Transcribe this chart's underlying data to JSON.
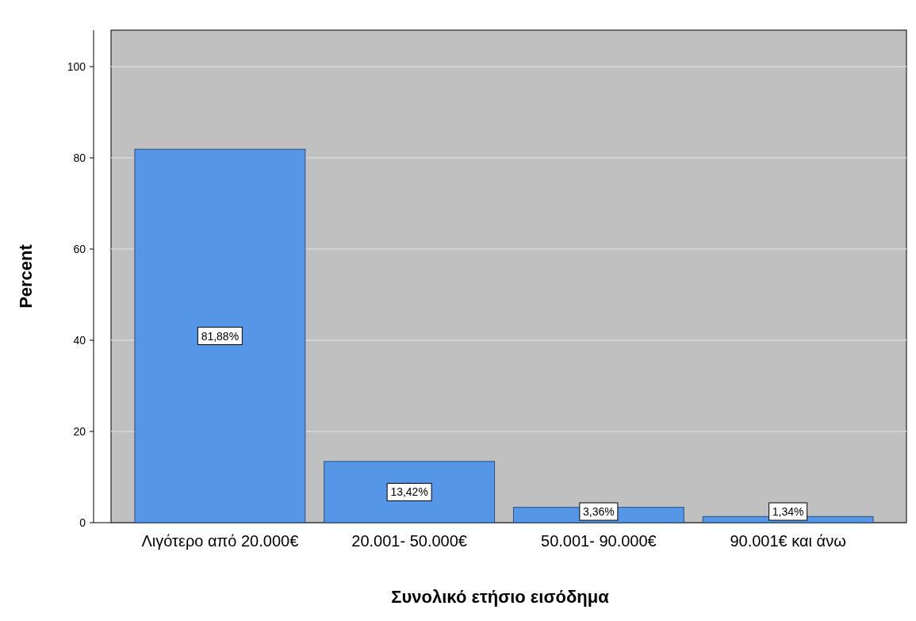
{
  "chart_data": {
    "type": "bar",
    "categories": [
      "Λιγότερο από 20.000€",
      "20.001- 50.000€",
      "50.001- 90.000€",
      "90.001€ και άνω"
    ],
    "values": [
      81.88,
      13.42,
      3.36,
      1.34
    ],
    "value_labels": [
      "81,88%",
      "13,42%",
      "3,36%",
      "1,34%"
    ],
    "color": "#5596e6",
    "xlabel": "Συνολικό ετήσιο εισόδημα",
    "ylabel": "Percent",
    "ylim": [
      0,
      108
    ],
    "yticks": [
      0,
      20,
      40,
      60,
      80,
      100
    ],
    "grid": "y"
  }
}
